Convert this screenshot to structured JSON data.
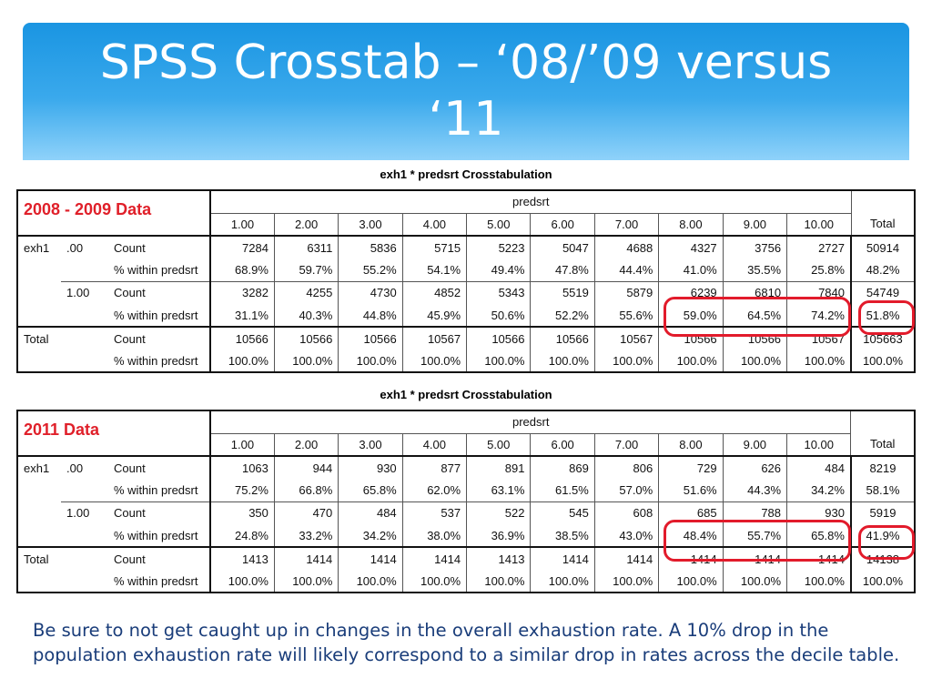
{
  "slide": {
    "title_line1": "SPSS Crosstab – ‘08/’09 versus",
    "title_line2": "‘11",
    "note": "Be sure to not get caught up in changes in the overall exhaustion rate. A 10% drop in the population exhaustion rate will likely correspond to a similar drop in rates across the decile table."
  },
  "tables": [
    {
      "caption": "exh1 * predsrt Crosstabulation",
      "data_label": "2008 - 2009 Data",
      "col_var": "predsrt",
      "row_var": "exh1",
      "columns": [
        "1.00",
        "2.00",
        "3.00",
        "4.00",
        "5.00",
        "6.00",
        "7.00",
        "8.00",
        "9.00",
        "10.00"
      ],
      "total_label": "Total",
      "rows": [
        {
          "group": "exh1",
          "level": ".00",
          "stat": "Count",
          "values": [
            "7284",
            "6311",
            "5836",
            "5715",
            "5223",
            "5047",
            "4688",
            "4327",
            "3756",
            "2727"
          ],
          "total": "50914"
        },
        {
          "group": "",
          "level": "",
          "stat": "% within predsrt",
          "values": [
            "68.9%",
            "59.7%",
            "55.2%",
            "54.1%",
            "49.4%",
            "47.8%",
            "44.4%",
            "41.0%",
            "35.5%",
            "25.8%"
          ],
          "total": "48.2%"
        },
        {
          "group": "",
          "level": "1.00",
          "stat": "Count",
          "values": [
            "3282",
            "4255",
            "4730",
            "4852",
            "5343",
            "5519",
            "5879",
            "6239",
            "6810",
            "7840"
          ],
          "total": "54749"
        },
        {
          "group": "",
          "level": "",
          "stat": "% within predsrt",
          "values": [
            "31.1%",
            "40.3%",
            "44.8%",
            "45.9%",
            "50.6%",
            "52.2%",
            "55.6%",
            "59.0%",
            "64.5%",
            "74.2%"
          ],
          "total": "51.8%"
        },
        {
          "group": "Total",
          "level": "",
          "stat": "Count",
          "values": [
            "10566",
            "10566",
            "10566",
            "10567",
            "10566",
            "10566",
            "10567",
            "10566",
            "10566",
            "10567"
          ],
          "total": "105663"
        },
        {
          "group": "",
          "level": "",
          "stat": "% within predsrt",
          "values": [
            "100.0%",
            "100.0%",
            "100.0%",
            "100.0%",
            "100.0%",
            "100.0%",
            "100.0%",
            "100.0%",
            "100.0%",
            "100.0%"
          ],
          "total": "100.0%"
        }
      ]
    },
    {
      "caption": "exh1 * predsrt Crosstabulation",
      "data_label": "2011 Data",
      "col_var": "predsrt",
      "row_var": "exh1",
      "columns": [
        "1.00",
        "2.00",
        "3.00",
        "4.00",
        "5.00",
        "6.00",
        "7.00",
        "8.00",
        "9.00",
        "10.00"
      ],
      "total_label": "Total",
      "rows": [
        {
          "group": "exh1",
          "level": ".00",
          "stat": "Count",
          "values": [
            "1063",
            "944",
            "930",
            "877",
            "891",
            "869",
            "806",
            "729",
            "626",
            "484"
          ],
          "total": "8219"
        },
        {
          "group": "",
          "level": "",
          "stat": "% within predsrt",
          "values": [
            "75.2%",
            "66.8%",
            "65.8%",
            "62.0%",
            "63.1%",
            "61.5%",
            "57.0%",
            "51.6%",
            "44.3%",
            "34.2%"
          ],
          "total": "58.1%"
        },
        {
          "group": "",
          "level": "1.00",
          "stat": "Count",
          "values": [
            "350",
            "470",
            "484",
            "537",
            "522",
            "545",
            "608",
            "685",
            "788",
            "930"
          ],
          "total": "5919"
        },
        {
          "group": "",
          "level": "",
          "stat": "% within predsrt",
          "values": [
            "24.8%",
            "33.2%",
            "34.2%",
            "38.0%",
            "36.9%",
            "38.5%",
            "43.0%",
            "48.4%",
            "55.7%",
            "65.8%"
          ],
          "total": "41.9%"
        },
        {
          "group": "Total",
          "level": "",
          "stat": "Count",
          "values": [
            "1413",
            "1414",
            "1414",
            "1414",
            "1413",
            "1414",
            "1414",
            "1414",
            "1414",
            "1414"
          ],
          "total": "14138"
        },
        {
          "group": "",
          "level": "",
          "stat": "% within predsrt",
          "values": [
            "100.0%",
            "100.0%",
            "100.0%",
            "100.0%",
            "100.0%",
            "100.0%",
            "100.0%",
            "100.0%",
            "100.0%",
            "100.0%"
          ],
          "total": "100.0%"
        }
      ]
    }
  ],
  "highlight_color": "#e21b2b",
  "header_color": "#1a95e2"
}
